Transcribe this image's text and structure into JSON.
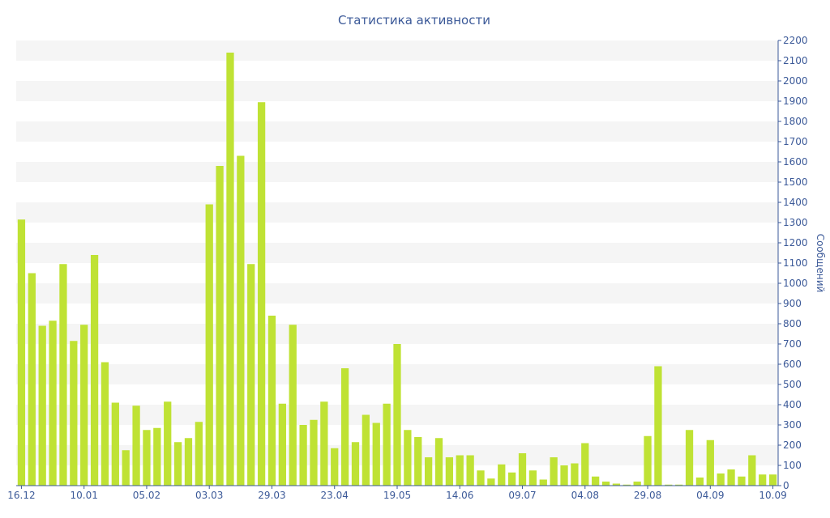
{
  "chart_data": {
    "type": "bar",
    "title": "Статистика активности",
    "xlabel": "",
    "ylabel": "Сообщений",
    "ylim": [
      0,
      2200
    ],
    "y_ticks": [
      0,
      100,
      200,
      300,
      400,
      500,
      600,
      700,
      800,
      900,
      1000,
      1100,
      1200,
      1300,
      1400,
      1500,
      1600,
      1700,
      1800,
      1900,
      2000,
      2100,
      2200
    ],
    "y_axis_side": "right",
    "grid": "horizontal-bands",
    "x_tick_labels": [
      {
        "label": "16.12",
        "index": 0
      },
      {
        "label": "10.01",
        "index": 6
      },
      {
        "label": "05.02",
        "index": 12
      },
      {
        "label": "03.03",
        "index": 18
      },
      {
        "label": "29.03",
        "index": 24
      },
      {
        "label": "23.04",
        "index": 30
      },
      {
        "label": "19.05",
        "index": 36
      },
      {
        "label": "14.06",
        "index": 42
      },
      {
        "label": "09.07",
        "index": 48
      },
      {
        "label": "04.08",
        "index": 54
      },
      {
        "label": "29.08",
        "index": 60
      },
      {
        "label": "04.09",
        "index": 66
      },
      {
        "label": "10.09",
        "index": 72
      }
    ],
    "bar_color": "#bfe234",
    "band_color": "#f5f5f5",
    "axis_color": "#3b5998",
    "values": [
      1315,
      1050,
      790,
      815,
      1095,
      715,
      795,
      1140,
      610,
      410,
      175,
      395,
      275,
      285,
      415,
      215,
      235,
      315,
      1390,
      1580,
      2140,
      1630,
      1095,
      1895,
      840,
      405,
      795,
      300,
      325,
      415,
      185,
      580,
      215,
      350,
      310,
      405,
      700,
      275,
      240,
      140,
      235,
      140,
      150,
      150,
      75,
      35,
      105,
      65,
      160,
      75,
      30,
      140,
      100,
      110,
      210,
      45,
      20,
      10,
      5,
      20,
      245,
      590,
      5,
      5,
      275,
      40,
      225,
      60,
      80,
      45,
      150,
      55,
      55
    ]
  }
}
